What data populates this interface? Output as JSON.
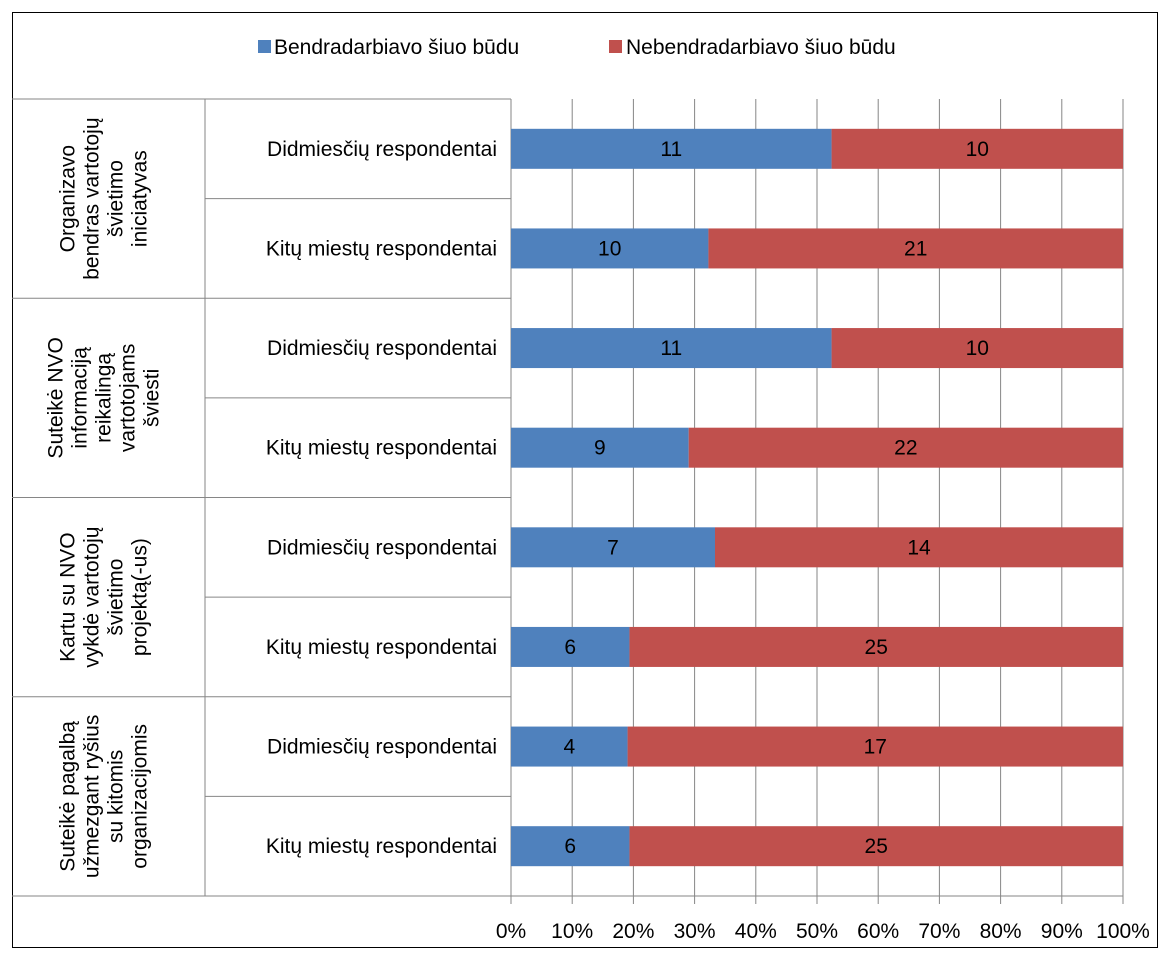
{
  "chart_data": {
    "type": "bar",
    "orientation": "horizontal",
    "stacked": "percent",
    "legend": {
      "position": "top"
    },
    "series": [
      {
        "name": "Bendradarbiavo šiuo būdu",
        "color": "#4f81bd"
      },
      {
        "name": "Nebendradarbiavo šiuo būdu",
        "color": "#c0504d"
      }
    ],
    "groups": [
      {
        "label_lines": [
          "Organizavo",
          "bendras vartotojų",
          "švietimo",
          "iniciatyvas"
        ],
        "rows": [
          {
            "category": "Didmiesčių respondentai",
            "values": [
              11,
              10
            ]
          },
          {
            "category": "Kitų miestų respondentai",
            "values": [
              10,
              21
            ]
          }
        ]
      },
      {
        "label_lines": [
          "Suteikė NVO",
          "informaciją",
          "reikalingą",
          "vartotojams",
          "šviesti"
        ],
        "rows": [
          {
            "category": "Didmiesčių respondentai",
            "values": [
              11,
              10
            ]
          },
          {
            "category": "Kitų miestų respondentai",
            "values": [
              9,
              22
            ]
          }
        ]
      },
      {
        "label_lines": [
          "Kartu su NVO",
          "vykdė vartotojų",
          "švietimo",
          "projektą(-us)"
        ],
        "rows": [
          {
            "category": "Didmiesčių respondentai",
            "values": [
              7,
              14
            ]
          },
          {
            "category": "Kitų miestų respondentai",
            "values": [
              6,
              25
            ]
          }
        ]
      },
      {
        "label_lines": [
          "Suteikė pagalbą",
          "užmezgant ryšius",
          "su kitomis",
          "organizacijomis"
        ],
        "rows": [
          {
            "category": "Didmiesčių respondentai",
            "values": [
              4,
              17
            ]
          },
          {
            "category": "Kitų miestų respondentai",
            "values": [
              6,
              25
            ]
          }
        ]
      }
    ],
    "x_axis": {
      "ticks": [
        "0%",
        "10%",
        "20%",
        "30%",
        "40%",
        "50%",
        "60%",
        "70%",
        "80%",
        "90%",
        "100%"
      ],
      "range": [
        0,
        100
      ]
    },
    "grid": {
      "vertical": true
    },
    "title": "",
    "xlabel": "",
    "ylabel": ""
  }
}
